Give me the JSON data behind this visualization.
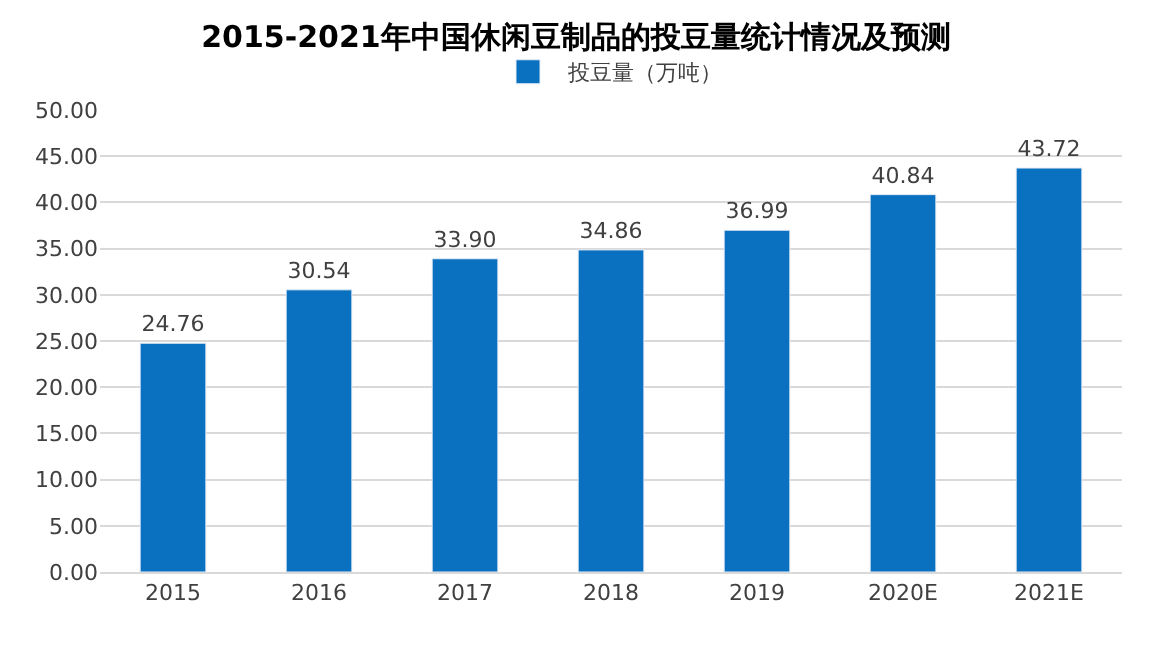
{
  "chart_data": {
    "type": "bar",
    "title": "2015-2021年中国休闲豆制品的投豆量统计情况及预测",
    "categories": [
      "2015",
      "2016",
      "2017",
      "2018",
      "2019",
      "2020E",
      "2021E"
    ],
    "series": [
      {
        "name": "投豆量（万吨）",
        "color": "#0a70c0",
        "values": [
          24.76,
          30.54,
          33.9,
          34.86,
          36.99,
          40.84,
          43.72
        ],
        "value_labels": [
          "24.76",
          "30.54",
          "33.90",
          "34.86",
          "36.99",
          "40.84",
          "43.72"
        ]
      }
    ],
    "ylim": [
      0,
      50
    ],
    "yticks": [
      {
        "value": 0,
        "label": "0.00"
      },
      {
        "value": 5,
        "label": "5.00"
      },
      {
        "value": 10,
        "label": "10.00"
      },
      {
        "value": 15,
        "label": "15.00"
      },
      {
        "value": 20,
        "label": "20.00"
      },
      {
        "value": 25,
        "label": "25.00"
      },
      {
        "value": 30,
        "label": "30.00"
      },
      {
        "value": 35,
        "label": "35.00"
      },
      {
        "value": 40,
        "label": "40.00"
      },
      {
        "value": 45,
        "label": "45.00"
      },
      {
        "value": 50,
        "label": "50.00"
      }
    ],
    "grid": "y",
    "legend": "top"
  }
}
